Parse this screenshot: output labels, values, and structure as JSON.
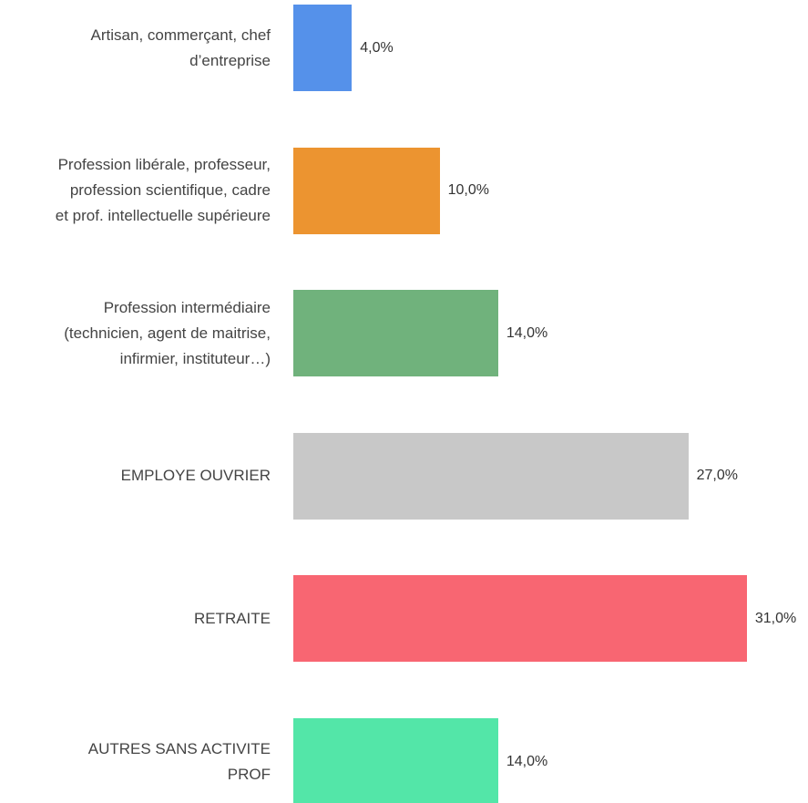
{
  "chart_data": {
    "type": "bar",
    "orientation": "horizontal",
    "categories": [
      "Artisan, commerçant, chef\nd’entreprise",
      "Profession libérale, professeur,\nprofession scientifique, cadre\net prof. intellectuelle supérieure",
      "Profession intermédiaire\n(technicien, agent de maitrise,\ninfirmier, instituteur…)",
      "EMPLOYE OUVRIER",
      "RETRAITE",
      "AUTRES SANS ACTIVITE\nPROF"
    ],
    "values": [
      4,
      10,
      14,
      27,
      31,
      14
    ],
    "value_labels": [
      "4,0%",
      "10,0%",
      "14,0%",
      "27,0%",
      "31,0%",
      "14,0%"
    ],
    "colors": [
      "#5591ea",
      "#ec9430",
      "#70b27c",
      "#c8c8c8",
      "#f86672",
      "#53e6a8"
    ]
  }
}
